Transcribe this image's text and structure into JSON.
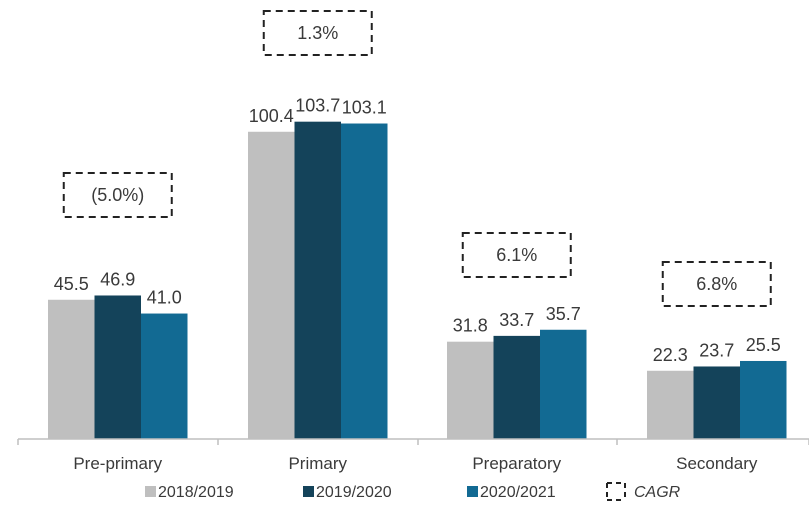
{
  "chart_data": {
    "type": "bar",
    "categories": [
      "Pre-primary",
      "Primary",
      "Preparatory",
      "Secondary"
    ],
    "series": [
      {
        "name": "2018/2019",
        "values": [
          45.5,
          100.4,
          31.8,
          22.3
        ],
        "labels": [
          "45.5",
          "100.4",
          "31.8",
          "22.3"
        ],
        "color": "#bfbfbf"
      },
      {
        "name": "2019/2020",
        "values": [
          46.9,
          103.7,
          33.7,
          23.7
        ],
        "labels": [
          "46.9",
          "103.7",
          "33.7",
          "23.7"
        ],
        "color": "#14435a"
      },
      {
        "name": "2020/2021",
        "values": [
          41.0,
          103.1,
          35.7,
          25.5
        ],
        "labels": [
          "41.0",
          "103.1",
          "35.7",
          "25.5"
        ],
        "color": "#126a93"
      }
    ],
    "cagr": [
      "(5.0%)",
      "1.3%",
      "6.1%",
      "6.8%"
    ],
    "cagr_legend": "CAGR",
    "ylim": [
      0,
      105
    ],
    "grid": false,
    "legend_position": "bottom"
  }
}
